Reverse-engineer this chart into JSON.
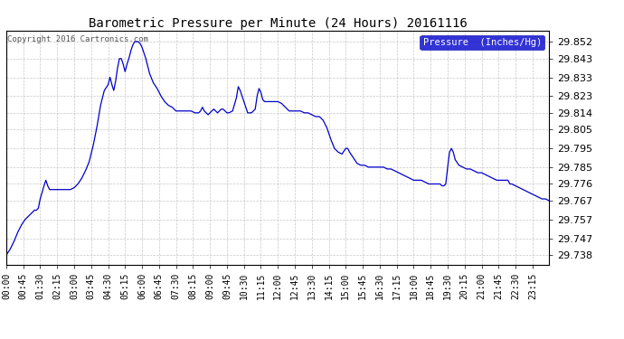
{
  "title": "Barometric Pressure per Minute (24 Hours) 20161116",
  "copyright": "Copyright 2016 Cartronics.com",
  "legend_label": "Pressure  (Inches/Hg)",
  "background_color": "#ffffff",
  "line_color": "#0000cc",
  "grid_color": "#b0b0b0",
  "yticks": [
    29.738,
    29.747,
    29.757,
    29.767,
    29.776,
    29.785,
    29.795,
    29.805,
    29.814,
    29.823,
    29.833,
    29.843,
    29.852
  ],
  "ymin": 29.733,
  "ymax": 29.858,
  "xtick_labels": [
    "00:00",
    "00:45",
    "01:30",
    "02:15",
    "03:00",
    "03:45",
    "04:30",
    "05:15",
    "06:00",
    "06:45",
    "07:30",
    "08:15",
    "09:00",
    "09:45",
    "10:30",
    "11:15",
    "12:00",
    "12:45",
    "13:30",
    "14:15",
    "15:00",
    "15:45",
    "16:30",
    "17:15",
    "18:00",
    "18:45",
    "19:30",
    "20:15",
    "21:00",
    "21:45",
    "22:30",
    "23:15"
  ],
  "keypoints": [
    [
      0,
      29.738
    ],
    [
      10,
      29.741
    ],
    [
      20,
      29.745
    ],
    [
      30,
      29.75
    ],
    [
      40,
      29.754
    ],
    [
      50,
      29.757
    ],
    [
      60,
      29.759
    ],
    [
      70,
      29.761
    ],
    [
      75,
      29.762
    ],
    [
      80,
      29.762
    ],
    [
      85,
      29.763
    ],
    [
      90,
      29.768
    ],
    [
      100,
      29.775
    ],
    [
      105,
      29.778
    ],
    [
      110,
      29.775
    ],
    [
      115,
      29.773
    ],
    [
      120,
      29.773
    ],
    [
      130,
      29.773
    ],
    [
      140,
      29.773
    ],
    [
      150,
      29.773
    ],
    [
      160,
      29.773
    ],
    [
      170,
      29.773
    ],
    [
      180,
      29.774
    ],
    [
      190,
      29.776
    ],
    [
      200,
      29.779
    ],
    [
      210,
      29.783
    ],
    [
      220,
      29.788
    ],
    [
      230,
      29.796
    ],
    [
      240,
      29.806
    ],
    [
      250,
      29.818
    ],
    [
      260,
      29.826
    ],
    [
      270,
      29.829
    ],
    [
      275,
      29.833
    ],
    [
      280,
      29.829
    ],
    [
      285,
      29.826
    ],
    [
      290,
      29.831
    ],
    [
      295,
      29.838
    ],
    [
      300,
      29.843
    ],
    [
      305,
      29.843
    ],
    [
      310,
      29.84
    ],
    [
      315,
      29.836
    ],
    [
      320,
      29.84
    ],
    [
      325,
      29.843
    ],
    [
      330,
      29.847
    ],
    [
      335,
      29.85
    ],
    [
      340,
      29.852
    ],
    [
      345,
      29.852
    ],
    [
      350,
      29.852
    ],
    [
      355,
      29.851
    ],
    [
      360,
      29.849
    ],
    [
      370,
      29.843
    ],
    [
      380,
      29.835
    ],
    [
      390,
      29.83
    ],
    [
      400,
      29.827
    ],
    [
      410,
      29.823
    ],
    [
      420,
      29.82
    ],
    [
      430,
      29.818
    ],
    [
      440,
      29.817
    ],
    [
      450,
      29.815
    ],
    [
      460,
      29.815
    ],
    [
      470,
      29.815
    ],
    [
      480,
      29.815
    ],
    [
      490,
      29.815
    ],
    [
      500,
      29.814
    ],
    [
      510,
      29.814
    ],
    [
      515,
      29.815
    ],
    [
      520,
      29.817
    ],
    [
      525,
      29.815
    ],
    [
      530,
      29.814
    ],
    [
      535,
      29.813
    ],
    [
      540,
      29.814
    ],
    [
      545,
      29.815
    ],
    [
      550,
      29.816
    ],
    [
      555,
      29.815
    ],
    [
      560,
      29.814
    ],
    [
      565,
      29.815
    ],
    [
      570,
      29.816
    ],
    [
      575,
      29.816
    ],
    [
      580,
      29.815
    ],
    [
      585,
      29.814
    ],
    [
      590,
      29.814
    ],
    [
      600,
      29.815
    ],
    [
      610,
      29.822
    ],
    [
      615,
      29.828
    ],
    [
      620,
      29.826
    ],
    [
      625,
      29.823
    ],
    [
      630,
      29.82
    ],
    [
      640,
      29.814
    ],
    [
      650,
      29.814
    ],
    [
      660,
      29.816
    ],
    [
      665,
      29.823
    ],
    [
      670,
      29.827
    ],
    [
      675,
      29.825
    ],
    [
      680,
      29.821
    ],
    [
      685,
      29.82
    ],
    [
      695,
      29.82
    ],
    [
      700,
      29.82
    ],
    [
      710,
      29.82
    ],
    [
      720,
      29.82
    ],
    [
      730,
      29.819
    ],
    [
      740,
      29.817
    ],
    [
      750,
      29.815
    ],
    [
      760,
      29.815
    ],
    [
      770,
      29.815
    ],
    [
      780,
      29.815
    ],
    [
      790,
      29.814
    ],
    [
      800,
      29.814
    ],
    [
      810,
      29.813
    ],
    [
      820,
      29.812
    ],
    [
      830,
      29.812
    ],
    [
      840,
      29.81
    ],
    [
      850,
      29.806
    ],
    [
      860,
      29.8
    ],
    [
      870,
      29.795
    ],
    [
      880,
      29.793
    ],
    [
      890,
      29.792
    ],
    [
      900,
      29.795
    ],
    [
      905,
      29.795
    ],
    [
      910,
      29.793
    ],
    [
      920,
      29.79
    ],
    [
      930,
      29.787
    ],
    [
      940,
      29.786
    ],
    [
      950,
      29.786
    ],
    [
      960,
      29.785
    ],
    [
      970,
      29.785
    ],
    [
      980,
      29.785
    ],
    [
      990,
      29.785
    ],
    [
      1000,
      29.785
    ],
    [
      1010,
      29.784
    ],
    [
      1020,
      29.784
    ],
    [
      1030,
      29.783
    ],
    [
      1040,
      29.782
    ],
    [
      1050,
      29.781
    ],
    [
      1060,
      29.78
    ],
    [
      1070,
      29.779
    ],
    [
      1080,
      29.778
    ],
    [
      1090,
      29.778
    ],
    [
      1100,
      29.778
    ],
    [
      1110,
      29.777
    ],
    [
      1120,
      29.776
    ],
    [
      1130,
      29.776
    ],
    [
      1140,
      29.776
    ],
    [
      1150,
      29.776
    ],
    [
      1155,
      29.775
    ],
    [
      1160,
      29.775
    ],
    [
      1165,
      29.776
    ],
    [
      1170,
      29.785
    ],
    [
      1175,
      29.793
    ],
    [
      1180,
      29.795
    ],
    [
      1185,
      29.793
    ],
    [
      1190,
      29.789
    ],
    [
      1200,
      29.786
    ],
    [
      1210,
      29.785
    ],
    [
      1220,
      29.784
    ],
    [
      1230,
      29.784
    ],
    [
      1240,
      29.783
    ],
    [
      1250,
      29.782
    ],
    [
      1260,
      29.782
    ],
    [
      1270,
      29.781
    ],
    [
      1280,
      29.78
    ],
    [
      1290,
      29.779
    ],
    [
      1300,
      29.778
    ],
    [
      1310,
      29.778
    ],
    [
      1315,
      29.778
    ],
    [
      1320,
      29.778
    ],
    [
      1325,
      29.778
    ],
    [
      1330,
      29.778
    ],
    [
      1335,
      29.776
    ],
    [
      1340,
      29.776
    ],
    [
      1350,
      29.775
    ],
    [
      1360,
      29.774
    ],
    [
      1370,
      29.773
    ],
    [
      1380,
      29.772
    ],
    [
      1390,
      29.771
    ],
    [
      1400,
      29.77
    ],
    [
      1410,
      29.769
    ],
    [
      1420,
      29.768
    ],
    [
      1430,
      29.768
    ],
    [
      1439,
      29.767
    ]
  ]
}
